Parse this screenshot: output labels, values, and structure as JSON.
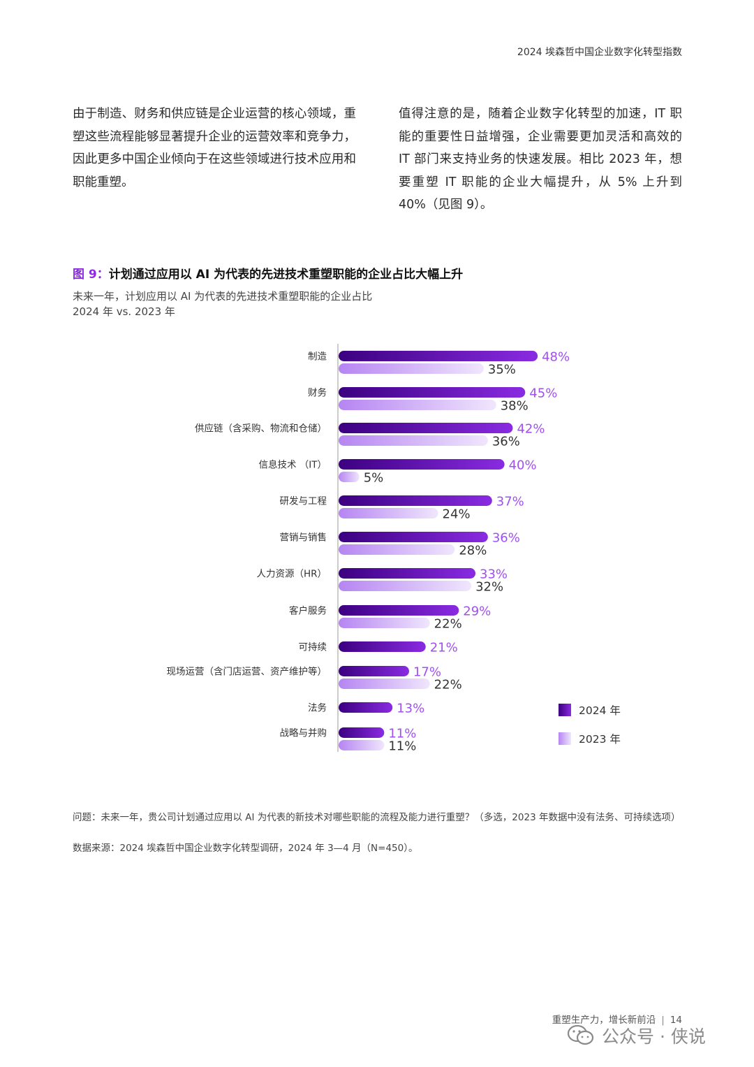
{
  "header": {
    "title": "2024 埃森哲中国企业数字化转型指数"
  },
  "paragraphs": {
    "left": "由于制造、财务和供应链是企业运营的核心领域，重塑这些流程能够显著提升企业的运营效率和竞争力，因此更多中国企业倾向于在这些领域进行技术应用和职能重塑。",
    "right": "值得注意的是，随着企业数字化转型的加速，IT 职能的重要性日益增强，企业需要更加灵活和高效的 IT 部门来支持业务的快速发展。相比 2023 年，想要重塑 IT 职能的企业大幅提升，从 5% 上升到 40%（见图 9）。"
  },
  "figure": {
    "number": "图 9：",
    "title": "计划通过应用以 AI 为代表的先进技术重塑职能的企业占比大幅上升",
    "subtitle1": "未来一年，计划应用以 AI 为代表的先进技术重塑职能的企业占比",
    "subtitle2": "2024 年 vs. 2023 年"
  },
  "legend": {
    "y2024": "2024 年",
    "y2023": "2023 年"
  },
  "colors": {
    "bar2024_start": "#3b0080",
    "bar2024_end": "#8a2be2",
    "bar2023_start": "#b685f2",
    "bar2023_end": "#f0e6fd",
    "label2024": "#a14ff0",
    "label2023": "#333333",
    "axis": "#999999"
  },
  "chart_data": {
    "type": "bar",
    "orientation": "horizontal",
    "categories": [
      "制造",
      "财务",
      "供应链（含采购、物流和仓储）",
      "信息技术 （IT）",
      "研发与工程",
      "营销与销售",
      "人力资源（HR）",
      "客户服务",
      "可持续",
      "现场运营（含门店运营、资产维护等）",
      "法务",
      "战略与并购"
    ],
    "series": [
      {
        "name": "2024 年",
        "values": [
          48,
          45,
          42,
          40,
          37,
          36,
          33,
          29,
          21,
          17,
          13,
          11
        ],
        "labels": [
          "48%",
          "45%",
          "42%",
          "40%",
          "37%",
          "36%",
          "33%",
          "29%",
          "21%",
          "17%",
          "13%",
          "11%"
        ]
      },
      {
        "name": "2023 年",
        "values": [
          35,
          38,
          36,
          5,
          24,
          28,
          32,
          22,
          null,
          22,
          null,
          11
        ],
        "labels": [
          "35%",
          "38%",
          "36%",
          "5%",
          "24%",
          "28%",
          "32%",
          "22%",
          null,
          "22%",
          null,
          "11%"
        ]
      }
    ],
    "unit": "%",
    "legend_position": "bottom-right"
  },
  "notes": {
    "question": "问题：未来一年，贵公司计划通过应用以 AI 为代表的新技术对哪些职能的流程及能力进行重塑？（多选，2023 年数据中没有法务、可持续选项）",
    "source": "数据来源：2024 埃森哲中国企业数字化转型调研，2024 年 3—4 月（N=450）。"
  },
  "footer": {
    "text": "重塑生产力，增长新前沿",
    "page": "14"
  },
  "watermark": {
    "text": "公众号 · 侠说"
  }
}
